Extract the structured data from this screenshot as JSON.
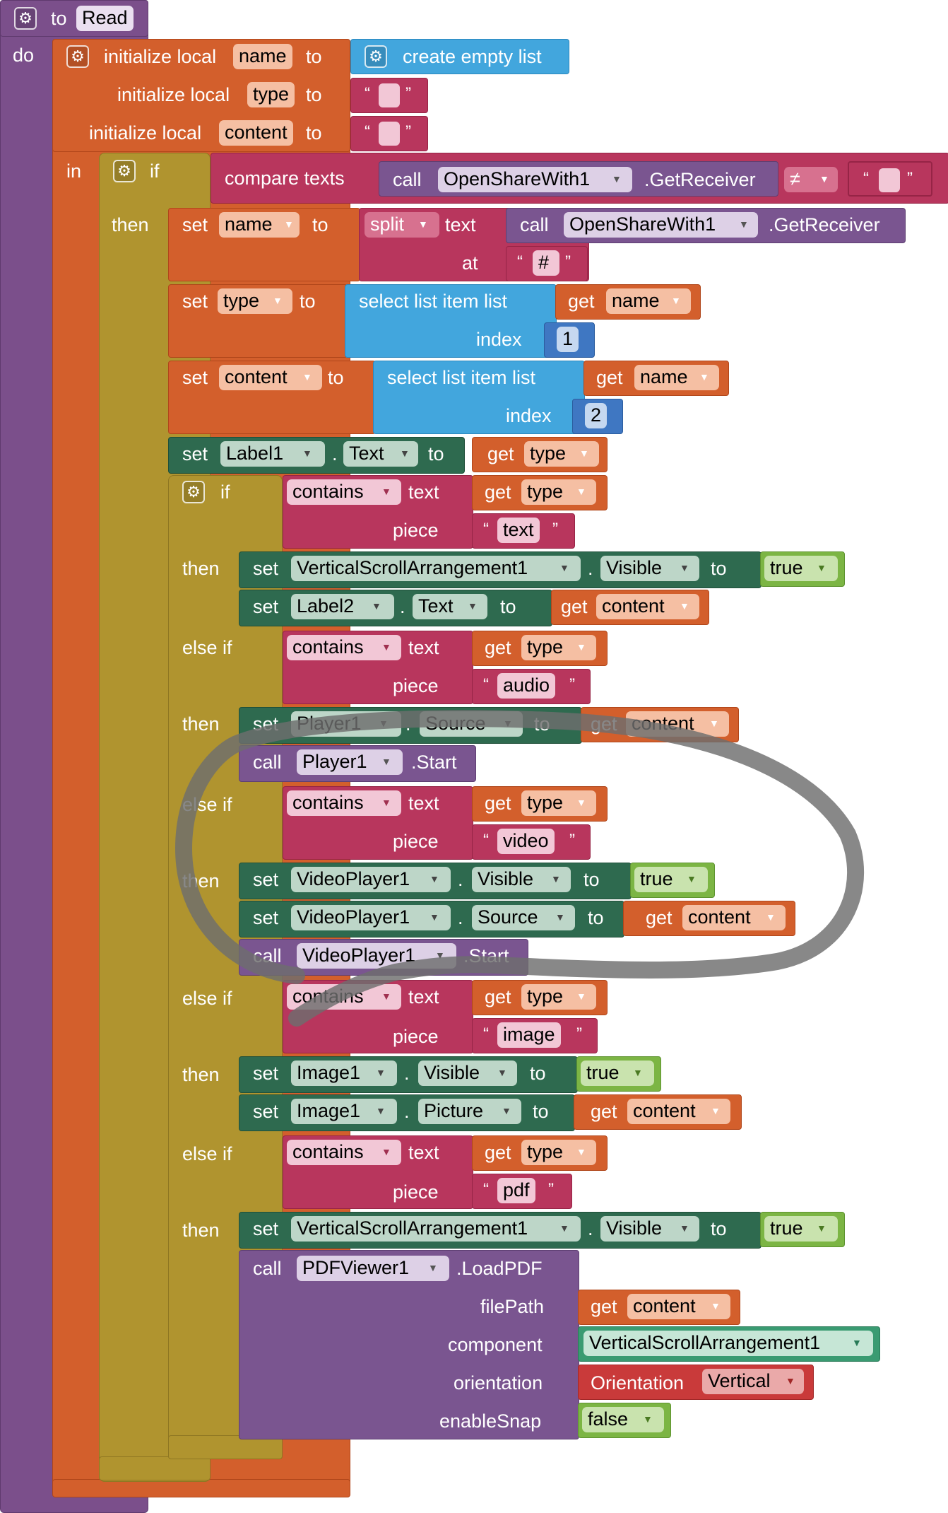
{
  "procedure": {
    "to_keyword": "to",
    "name": "Read",
    "do_keyword": "do",
    "in_keyword": "in"
  },
  "locals": [
    {
      "keyword": "initialize local",
      "var": "name",
      "to": "to",
      "value": "create empty list"
    },
    {
      "keyword": "initialize local",
      "var": "type",
      "to": "to",
      "value": ""
    },
    {
      "keyword": "initialize local",
      "var": "content",
      "to": "to",
      "value": ""
    }
  ],
  "outer_if": {
    "if_kw": "if",
    "then_kw": "then",
    "compare": {
      "label": "compare texts",
      "call": "call",
      "component": "OpenShareWith1",
      "method": ".GetReceiver",
      "op": "≠"
    }
  },
  "set_name": {
    "set": "set",
    "var": "name",
    "to": "to",
    "split": "split",
    "text": "text",
    "call": "call",
    "component": "OpenShareWith1",
    "method": ".GetReceiver",
    "at": "at",
    "sep": "#"
  },
  "set_type": {
    "set": "set",
    "var": "type",
    "to": "to",
    "select": "select list item  list",
    "get": "get",
    "src": "name",
    "index": "index",
    "n": "1"
  },
  "set_content": {
    "set": "set",
    "var": "content",
    "to": "to",
    "select": "select list item  list",
    "get": "get",
    "src": "name",
    "index": "index",
    "n": "2"
  },
  "set_label1": {
    "set": "set",
    "component": "Label1",
    "prop": "Text",
    "to": "to",
    "get": "get",
    "var": "type"
  },
  "inner_if": {
    "if_kw": "if",
    "then_kw": "then",
    "elseif_kw": "else if",
    "contains": "contains",
    "text_kw": "text",
    "piece_kw": "piece",
    "get": "get",
    "var": "type",
    "pieces": [
      "text",
      "audio",
      "video",
      "image",
      "pdf"
    ]
  },
  "branch_text": {
    "row1": {
      "set": "set",
      "component": "VerticalScrollArrangement1",
      "prop": "Visible",
      "to": "to",
      "value": "true"
    },
    "row2": {
      "set": "set",
      "component": "Label2",
      "prop": "Text",
      "to": "to",
      "get": "get",
      "var": "content"
    }
  },
  "branch_audio": {
    "row1": {
      "set": "set",
      "component": "Player1",
      "prop": "Source",
      "to": "to",
      "get": "get",
      "var": "content"
    },
    "row2": {
      "call": "call",
      "component": "Player1",
      "method": ".Start"
    }
  },
  "branch_video": {
    "row1": {
      "set": "set",
      "component": "VideoPlayer1",
      "prop": "Visible",
      "to": "to",
      "value": "true"
    },
    "row2": {
      "set": "set",
      "component": "VideoPlayer1",
      "prop": "Source",
      "to": "to",
      "get": "get",
      "var": "content"
    },
    "row3": {
      "call": "call",
      "component": "VideoPlayer1",
      "method": ".Start"
    }
  },
  "branch_image": {
    "row1": {
      "set": "set",
      "component": "Image1",
      "prop": "Visible",
      "to": "to",
      "value": "true"
    },
    "row2": {
      "set": "set",
      "component": "Image1",
      "prop": "Picture",
      "to": "to",
      "get": "get",
      "var": "content"
    }
  },
  "branch_pdf": {
    "row1": {
      "set": "set",
      "component": "VerticalScrollArrangement1",
      "prop": "Visible",
      "to": "to",
      "value": "true"
    },
    "call": {
      "call": "call",
      "component": "PDFViewer1",
      "method": ".LoadPDF",
      "filePath": "filePath",
      "get": "get",
      "var": "content",
      "component_kw": "component",
      "component_value": "VerticalScrollArrangement1",
      "orientation_kw": "orientation",
      "orientation_label": "Orientation",
      "orientation_value": "Vertical",
      "enableSnap_kw": "enableSnap",
      "enableSnap_value": "false"
    }
  },
  "colors": {
    "procedure": "#7b4f8b",
    "local": "#d35f2c",
    "control": "#b0942f",
    "text": "#b8365d",
    "component_method": "#7a5590",
    "list": "#42a6dd",
    "component_set": "#2e6a4f",
    "logic": "#7cb544",
    "math": "#3f77c2",
    "annotation": "#6e6e6e"
  }
}
